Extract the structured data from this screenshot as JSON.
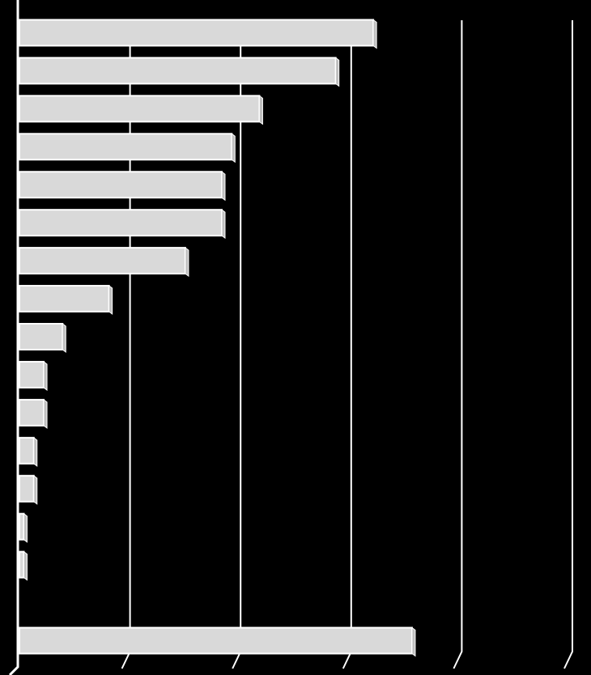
{
  "chart_data": {
    "type": "bar",
    "orientation": "horizontal",
    "categories": [
      null,
      null,
      null,
      null,
      null,
      null,
      null,
      null,
      null,
      null,
      null,
      null,
      null,
      null,
      null,
      null,
      null
    ],
    "values": [
      3.2,
      2.86,
      2.17,
      1.92,
      1.83,
      1.83,
      1.5,
      0.81,
      0.39,
      0.22,
      0.22,
      0.13,
      0.13,
      0.04,
      0.04,
      null,
      3.55
    ],
    "color": "#d9d9d9",
    "xlim": [
      0,
      5
    ],
    "xticks": [
      0,
      1,
      2,
      3,
      4,
      5
    ],
    "grid": true
  }
}
